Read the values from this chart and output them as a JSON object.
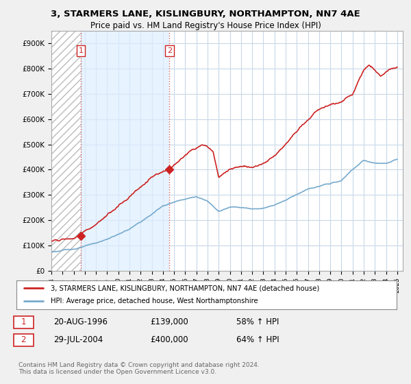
{
  "title1": "3, STARMERS LANE, KISLINGBURY, NORTHAMPTON, NN7 4AE",
  "title2": "Price paid vs. HM Land Registry's House Price Index (HPI)",
  "ylim": [
    0,
    950000
  ],
  "yticks": [
    0,
    100000,
    200000,
    300000,
    400000,
    500000,
    600000,
    700000,
    800000,
    900000
  ],
  "ytick_labels": [
    "£0",
    "£100K",
    "£200K",
    "£300K",
    "£400K",
    "£500K",
    "£600K",
    "£700K",
    "£800K",
    "£900K"
  ],
  "background_color": "#f0f0f0",
  "plot_bg_color": "#ffffff",
  "grid_color": "#c8d8e8",
  "red_line_color": "#cc2222",
  "blue_line_color": "#77aacc",
  "purchase1_year": 1996.64,
  "purchase1_price": 139000,
  "purchase2_year": 2004.58,
  "purchase2_price": 400000,
  "legend_line1": "3, STARMERS LANE, KISLINGBURY, NORTHAMPTON, NN7 4AE (detached house)",
  "legend_line2": "HPI: Average price, detached house, West Northamptonshire",
  "table_row1": [
    "1",
    "20-AUG-1996",
    "£139,000",
    "58% ↑ HPI"
  ],
  "table_row2": [
    "2",
    "29-JUL-2004",
    "£400,000",
    "64% ↑ HPI"
  ],
  "footer": "Contains HM Land Registry data © Crown copyright and database right 2024.\nThis data is licensed under the Open Government Licence v3.0.",
  "xmin": 1994,
  "xmax": 2025.5,
  "hatch_color": "#dddddd",
  "shade_color": "#ddeeff"
}
